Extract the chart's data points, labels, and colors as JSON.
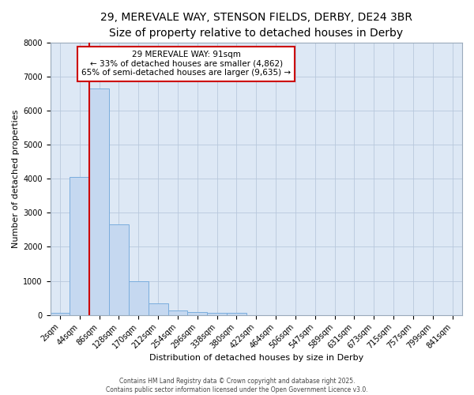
{
  "title_line1": "29, MEREVALE WAY, STENSON FIELDS, DERBY, DE24 3BR",
  "title_line2": "Size of property relative to detached houses in Derby",
  "xlabel": "Distribution of detached houses by size in Derby",
  "ylabel": "Number of detached properties",
  "plot_bg_color": "#dde8f5",
  "fig_bg_color": "#ffffff",
  "bar_color": "#c5d8f0",
  "bar_edge_color": "#7aaddd",
  "categories": [
    "2sqm",
    "44sqm",
    "86sqm",
    "128sqm",
    "170sqm",
    "212sqm",
    "254sqm",
    "296sqm",
    "338sqm",
    "380sqm",
    "422sqm",
    "464sqm",
    "506sqm",
    "547sqm",
    "589sqm",
    "631sqm",
    "673sqm",
    "715sqm",
    "757sqm",
    "799sqm",
    "841sqm"
  ],
  "values": [
    50,
    4050,
    6650,
    2650,
    1000,
    330,
    120,
    80,
    50,
    50,
    0,
    0,
    0,
    0,
    0,
    0,
    0,
    0,
    0,
    0,
    0
  ],
  "ylim": [
    0,
    8000
  ],
  "yticks": [
    0,
    1000,
    2000,
    3000,
    4000,
    5000,
    6000,
    7000,
    8000
  ],
  "vline_x_index": 1.5,
  "annotation_text": "29 MEREVALE WAY: 91sqm\n← 33% of detached houses are smaller (4,862)\n65% of semi-detached houses are larger (9,635) →",
  "annotation_box_color": "#ffffff",
  "annotation_border_color": "#cc0000",
  "vline_color": "#cc0000",
  "footer_line1": "Contains HM Land Registry data © Crown copyright and database right 2025.",
  "footer_line2": "Contains public sector information licensed under the Open Government Licence v3.0.",
  "grid_color": "#b8c8dc",
  "title_fontsize": 10,
  "subtitle_fontsize": 9,
  "axis_label_fontsize": 8,
  "tick_fontsize": 7,
  "annotation_fontsize": 7.5,
  "footer_fontsize": 5.5
}
